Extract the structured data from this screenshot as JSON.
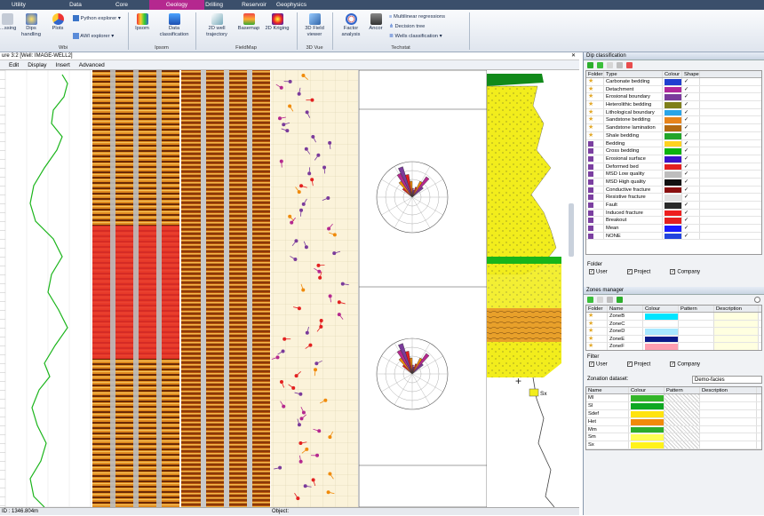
{
  "menu": {
    "tabs": [
      "Utility",
      "Data",
      "Core",
      "Geology",
      "Drilling",
      "Reservoir",
      "Geophysics"
    ],
    "active": "Geology"
  },
  "ribbon": {
    "wbi": [
      {
        "label": "...ssing"
      },
      {
        "label": "Dips handling"
      },
      {
        "label": "Plots"
      }
    ],
    "python_explorer": "Python explorer",
    "awi_explorer": "AWI explorer",
    "group_wbi": "Wbi",
    "ipsom_items": [
      {
        "label": "Ipsom"
      },
      {
        "label": "Data classification"
      }
    ],
    "group_ipsom": "Ipsom",
    "fieldmap_items": [
      {
        "label": "2D well trajectory"
      },
      {
        "label": "Basemap"
      },
      {
        "label": "2D Kriging"
      }
    ],
    "group_fieldmap": "FieldMap",
    "vue_items": [
      {
        "label": "3D Field viewer"
      }
    ],
    "group_vue": "3D Vue",
    "techstat_items": [
      {
        "label": "Factor analysis"
      },
      {
        "label": "Ancor"
      }
    ],
    "techstat_list": [
      "Multilinear regressions",
      "Decision tree",
      "Wells classification"
    ],
    "group_techstat": "Techstat"
  },
  "document": {
    "title": "ure 3:2 [Well: IMAGE-WELL2]",
    "menu": [
      "Edit",
      "Display",
      "Insert",
      "Advanced"
    ],
    "status_depth": "ID : 1346.804m",
    "status_object": "Object:",
    "annotation": "Sx"
  },
  "dip": {
    "title": "Dip classification",
    "headers": [
      "Folder",
      "Type",
      "Colour",
      "Shape"
    ],
    "rows": [
      {
        "folder": "star",
        "type": "Carbonate bedding",
        "color": "#1f3fd0"
      },
      {
        "folder": "star",
        "type": "Detachment",
        "color": "#b0279a"
      },
      {
        "folder": "star",
        "type": "Erosional boundary",
        "color": "#7a3b9b"
      },
      {
        "folder": "star",
        "type": "Heterolithic bedding",
        "color": "#7f7f1a"
      },
      {
        "folder": "star",
        "type": "Lithological boundary",
        "color": "#2aa5e8"
      },
      {
        "folder": "star",
        "type": "Sandstone bedding",
        "color": "#e8841a"
      },
      {
        "folder": "star",
        "type": "Sandstone lamination",
        "color": "#b36a10"
      },
      {
        "folder": "star",
        "type": "Shale bedding",
        "color": "#22a52a"
      },
      {
        "folder": "user",
        "type": "Bedding",
        "color": "#ffd21f"
      },
      {
        "folder": "user",
        "type": "Cross bedding",
        "color": "#0cb30c"
      },
      {
        "folder": "user",
        "type": "Erosional surface",
        "color": "#3c13c8"
      },
      {
        "folder": "user",
        "type": "Deformed bed",
        "color": "#e32020"
      },
      {
        "folder": "user",
        "type": "MSD Low quality",
        "color": "#bdbdbd"
      },
      {
        "folder": "user",
        "type": "MSD High quality",
        "color": "#111111"
      },
      {
        "folder": "user",
        "type": "Conductive fracture",
        "color": "#8a0f0f"
      },
      {
        "folder": "user",
        "type": "Resistive fracture",
        "color": "#e1e1e1"
      },
      {
        "folder": "user",
        "type": "Fault",
        "color": "#2a2a2a"
      },
      {
        "folder": "user",
        "type": "Induced fracture",
        "color": "#ee1f1f"
      },
      {
        "folder": "user",
        "type": "Breakout",
        "color": "#e52020"
      },
      {
        "folder": "user",
        "type": "Mean",
        "color": "#1c1cff"
      },
      {
        "folder": "user",
        "type": "NONE",
        "color": "#2244dd"
      }
    ],
    "folder_label": "Folder",
    "filters": [
      "User",
      "Project",
      "Company"
    ]
  },
  "zones": {
    "title": "Zones manager",
    "headers": [
      "Folder",
      "Name",
      "Colour",
      "Pattern",
      "Description"
    ],
    "rows": [
      {
        "name": "ZoneB",
        "color": "#00e5ff"
      },
      {
        "name": "ZoneC",
        "color": "#ffffff"
      },
      {
        "name": "ZoneD",
        "color": "#a8e8ff"
      },
      {
        "name": "ZoneE",
        "color": "#0a1a8a"
      },
      {
        "name": "ZoneF",
        "color": "#ff9eb0"
      }
    ],
    "filter_label": "Filter",
    "filters": [
      "User",
      "Project",
      "Company"
    ]
  },
  "zonation": {
    "label": "Zonation dataset:",
    "value": "Demo-facies",
    "headers": [
      "Name",
      "Colour",
      "Pattern",
      "Description"
    ],
    "rows": [
      {
        "name": "Ml",
        "color": "#33b529"
      },
      {
        "name": "Sl",
        "color": "#0ea823"
      },
      {
        "name": "Sdef",
        "color": "#ffe30f"
      },
      {
        "name": "Het",
        "color": "#f08a0a"
      },
      {
        "name": "Mm",
        "color": "#2cab2c"
      },
      {
        "name": "Sm",
        "color": "#ffff55"
      },
      {
        "name": "Sx",
        "color": "#fff21a"
      }
    ]
  },
  "colors": {
    "menubar": "#3b4f6b",
    "active_tab": "#b5288f"
  }
}
